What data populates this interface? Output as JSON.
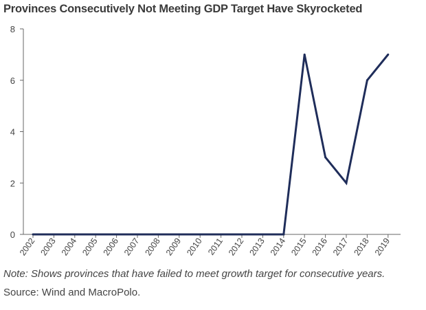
{
  "chart_data": {
    "type": "line",
    "title": "Provinces Consecutively Not Meeting GDP Target Have Skyrocketed",
    "xlabel": "",
    "ylabel": "",
    "categories": [
      "2002",
      "2003",
      "2004",
      "2005",
      "2006",
      "2007",
      "2008",
      "2009",
      "2010",
      "2011",
      "2012",
      "2013",
      "2014",
      "2015",
      "2016",
      "2017",
      "2018",
      "2019"
    ],
    "series": [
      {
        "values": [
          0,
          0,
          0,
          0,
          0,
          0,
          0,
          0,
          0,
          0,
          0,
          0,
          0,
          7,
          3,
          2,
          6,
          7
        ]
      }
    ],
    "ylim": [
      0,
      8
    ],
    "yticks": [
      0,
      2,
      4,
      6,
      8
    ],
    "grid": false,
    "line_color": "#1f2d5a",
    "axis_color": "#666666"
  },
  "note": "Note: Shows provinces that have failed to meet growth target for consecutive years.",
  "source": "Source: Wind and MacroPolo."
}
